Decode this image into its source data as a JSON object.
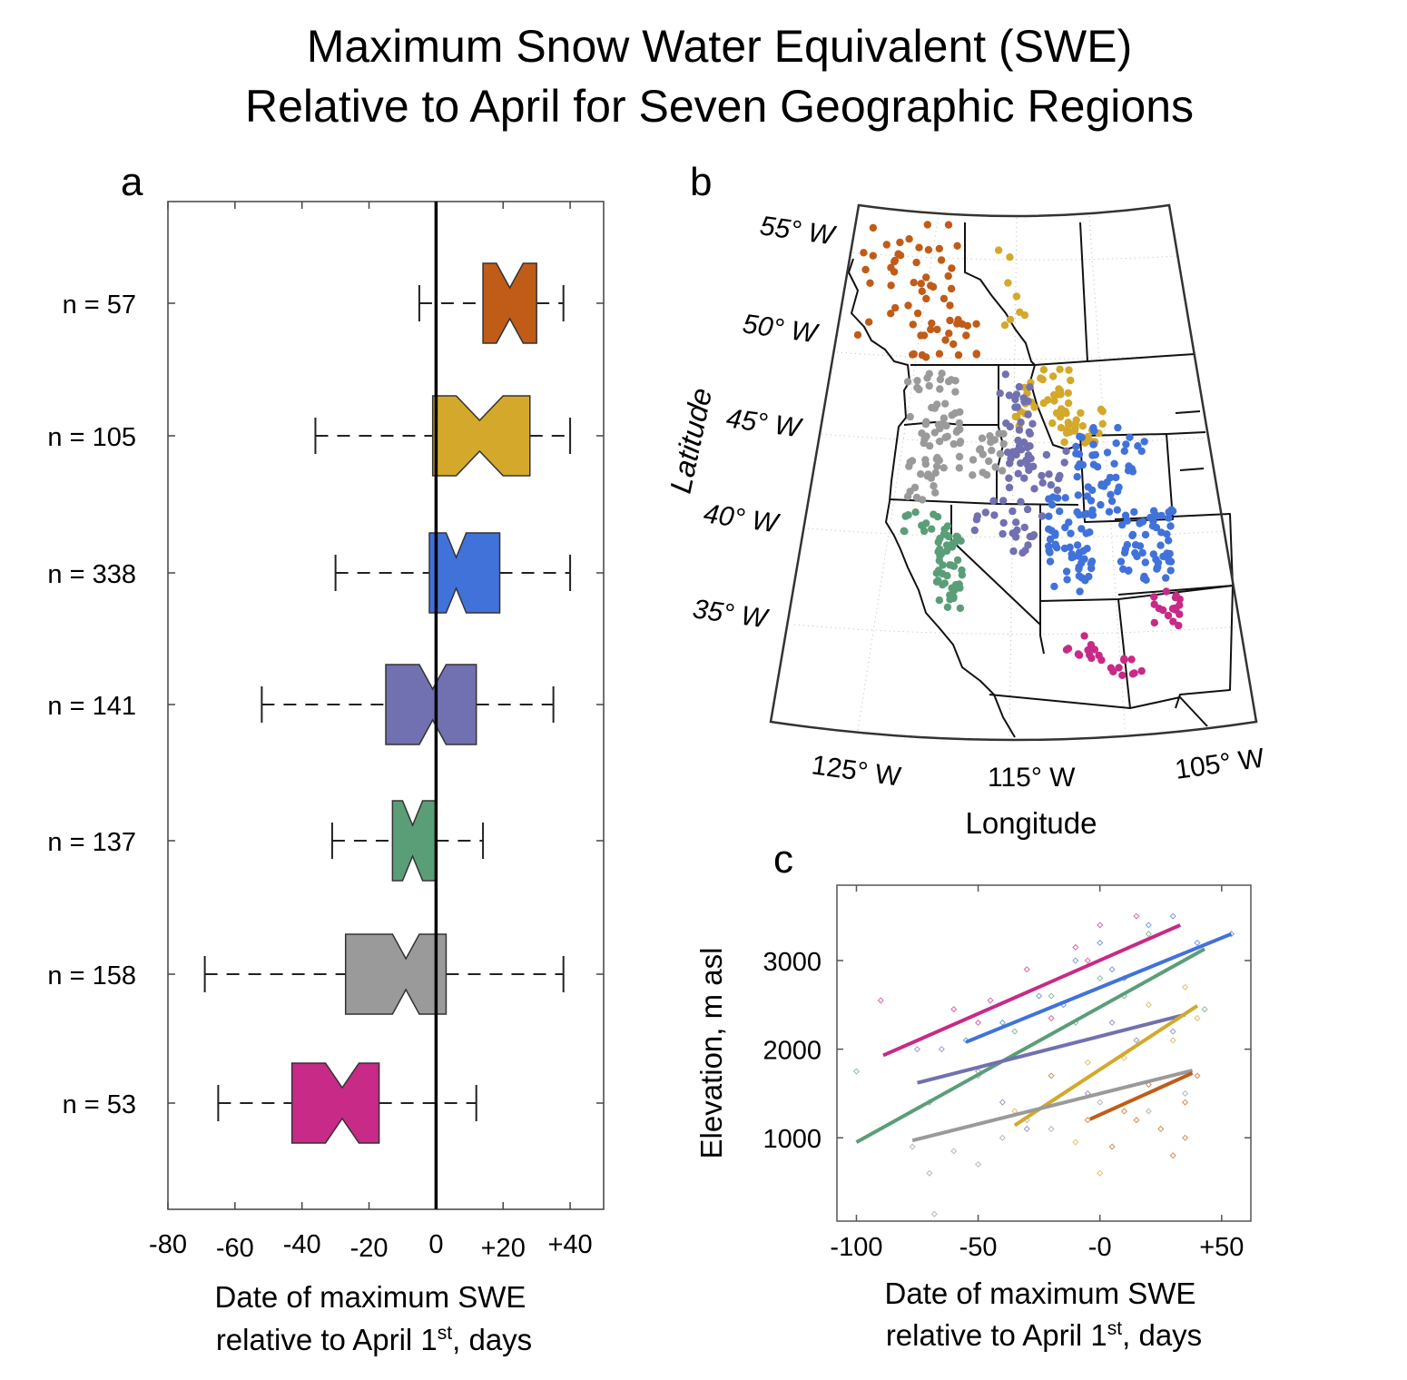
{
  "title": {
    "line1": "Maximum Snow Water Equivalent (SWE)",
    "line2": "Relative to April for Seven Geographic Regions"
  },
  "panels": {
    "a": "a",
    "b": "b",
    "c": "c"
  },
  "colors": {
    "orange": "#C05C17",
    "yellow": "#D4A82A",
    "blue": "#4172D9",
    "purple": "#7170B0",
    "green": "#5A9E78",
    "gray": "#9A9A9A",
    "magenta": "#C72A87"
  },
  "chart_data": [
    {
      "type": "boxplot",
      "panel": "a",
      "orientation": "horizontal",
      "notched": true,
      "xlim": [
        -80,
        50
      ],
      "x_ticks": [
        -80,
        -60,
        -40,
        -20,
        0,
        20,
        40
      ],
      "x_tick_labels": [
        "-80",
        "-60",
        "-40",
        "-20",
        "0",
        "+20",
        "+40"
      ],
      "xlabel_line1": "Date of maximum SWE",
      "xlabel_line2_pre": "relative to April 1",
      "xlabel_sup": "st",
      "xlabel_line2_post": ", days",
      "reference_line": 0,
      "series": [
        {
          "label": "n = 57",
          "color": "#C05C17",
          "whisker_low": -5,
          "q1": 14,
          "median": 22,
          "q3": 30,
          "whisker_high": 38,
          "notch": 4
        },
        {
          "label": "n = 105",
          "color": "#D4A82A",
          "whisker_low": -36,
          "q1": -1,
          "median": 13,
          "q3": 28,
          "whisker_high": 40,
          "notch": 7
        },
        {
          "label": "n = 338",
          "color": "#4172D9",
          "whisker_low": -30,
          "q1": -2,
          "median": 6,
          "q3": 19,
          "whisker_high": 40,
          "notch": 3
        },
        {
          "label": "n = 141",
          "color": "#7170B0",
          "whisker_low": -52,
          "q1": -15,
          "median": -1,
          "q3": 12,
          "whisker_high": 35,
          "notch": 4
        },
        {
          "label": "n = 137",
          "color": "#5A9E78",
          "whisker_low": -31,
          "q1": -13,
          "median": -7,
          "q3": 0,
          "whisker_high": 14,
          "notch": 3
        },
        {
          "label": "n = 158",
          "color": "#9A9A9A",
          "whisker_low": -69,
          "q1": -27,
          "median": -9,
          "q3": 3,
          "whisker_high": 38,
          "notch": 4
        },
        {
          "label": "n = 53",
          "color": "#C72A87",
          "whisker_low": -65,
          "q1": -43,
          "median": -28,
          "q3": -17,
          "whisker_high": 12,
          "notch": 5
        }
      ]
    },
    {
      "type": "map",
      "panel": "b",
      "lat_labels": [
        "55° W",
        "50° W",
        "45° W",
        "40° W",
        "35° W"
      ],
      "lon_labels": [
        "125° W",
        "115° W",
        "105° W"
      ],
      "xlabel": "Longitude",
      "ylabel": "Latitude",
      "series_colors": [
        "#C05C17",
        "#D4A82A",
        "#9A9A9A",
        "#7170B0",
        "#5A9E78",
        "#4172D9",
        "#C72A87"
      ]
    },
    {
      "type": "scatter",
      "panel": "c",
      "xlim": [
        -108,
        62
      ],
      "ylim": [
        60,
        3850
      ],
      "x_ticks": [
        -100,
        -50,
        0,
        50
      ],
      "x_tick_labels": [
        "-100",
        "-50",
        "-0",
        "+50"
      ],
      "y_ticks": [
        1000,
        2000,
        3000
      ],
      "y_tick_labels": [
        "1000",
        "2000",
        "3000"
      ],
      "xlabel_line1": "Date of maximum SWE",
      "xlabel_line2_pre": "relative to April 1",
      "xlabel_sup": "st",
      "xlabel_line2_post": ", days",
      "ylabel": "Elevation, m asl",
      "series": [
        {
          "color": "#C72A87",
          "fit": [
            [
              -89,
              1930
            ],
            [
              33,
              3400
            ]
          ],
          "points": [
            [
              -90,
              2550
            ],
            [
              -60,
              2450
            ],
            [
              -45,
              2550
            ],
            [
              -30,
              2900
            ],
            [
              -20,
              2350
            ],
            [
              -10,
              3150
            ],
            [
              -5,
              3000
            ],
            [
              0,
              3400
            ],
            [
              15,
              3500
            ],
            [
              -50,
              2300
            ]
          ]
        },
        {
          "color": "#4172D9",
          "fit": [
            [
              -55,
              2080
            ],
            [
              54,
              3300
            ]
          ],
          "points": [
            [
              -55,
              2100
            ],
            [
              -40,
              2300
            ],
            [
              -25,
              2600
            ],
            [
              -10,
              3000
            ],
            [
              0,
              3200
            ],
            [
              10,
              2800
            ],
            [
              20,
              3400
            ],
            [
              30,
              3500
            ],
            [
              40,
              3200
            ],
            [
              54,
              3300
            ],
            [
              -15,
              2500
            ],
            [
              5,
              2900
            ]
          ]
        },
        {
          "color": "#5A9E78",
          "fit": [
            [
              -100,
              950
            ],
            [
              43,
              3130
            ]
          ],
          "points": [
            [
              -100,
              1750
            ],
            [
              -70,
              1400
            ],
            [
              -50,
              1700
            ],
            [
              -35,
              2200
            ],
            [
              -20,
              2600
            ],
            [
              -10,
              2300
            ],
            [
              0,
              2800
            ],
            [
              10,
              2600
            ],
            [
              20,
              3300
            ],
            [
              43,
              2450
            ]
          ]
        },
        {
          "color": "#7170B0",
          "fit": [
            [
              -75,
              1620
            ],
            [
              35,
              2390
            ]
          ],
          "points": [
            [
              -75,
              2000
            ],
            [
              -65,
              2000
            ],
            [
              -50,
              1750
            ],
            [
              -40,
              1400
            ],
            [
              -20,
              1700
            ],
            [
              -5,
              1500
            ],
            [
              5,
              2300
            ],
            [
              15,
              2100
            ],
            [
              30,
              2200
            ],
            [
              -30,
              1100
            ]
          ]
        },
        {
          "color": "#D4A82A",
          "fit": [
            [
              -35,
              1140
            ],
            [
              40,
              2490
            ]
          ],
          "points": [
            [
              -35,
              1300
            ],
            [
              -20,
              1700
            ],
            [
              -10,
              950
            ],
            [
              0,
              600
            ],
            [
              10,
              1900
            ],
            [
              20,
              2500
            ],
            [
              30,
              2100
            ],
            [
              35,
              2700
            ],
            [
              40,
              2350
            ],
            [
              -5,
              1850
            ]
          ]
        },
        {
          "color": "#9A9A9A",
          "fit": [
            [
              -77,
              970
            ],
            [
              38,
              1760
            ]
          ],
          "points": [
            [
              -77,
              900
            ],
            [
              -70,
              600
            ],
            [
              -60,
              850
            ],
            [
              -50,
              700
            ],
            [
              -40,
              1000
            ],
            [
              -30,
              1200
            ],
            [
              -20,
              1100
            ],
            [
              0,
              1400
            ],
            [
              20,
              1300
            ],
            [
              35,
              1500
            ],
            [
              -68,
              140
            ]
          ]
        },
        {
          "color": "#C05C17",
          "fit": [
            [
              -4,
              1210
            ],
            [
              38,
              1730
            ]
          ],
          "points": [
            [
              -5,
              1200
            ],
            [
              5,
              900
            ],
            [
              15,
              1200
            ],
            [
              20,
              1600
            ],
            [
              25,
              1100
            ],
            [
              30,
              800
            ],
            [
              35,
              1400
            ],
            [
              40,
              1700
            ],
            [
              10,
              1300
            ],
            [
              35,
              1000
            ]
          ]
        }
      ]
    }
  ]
}
